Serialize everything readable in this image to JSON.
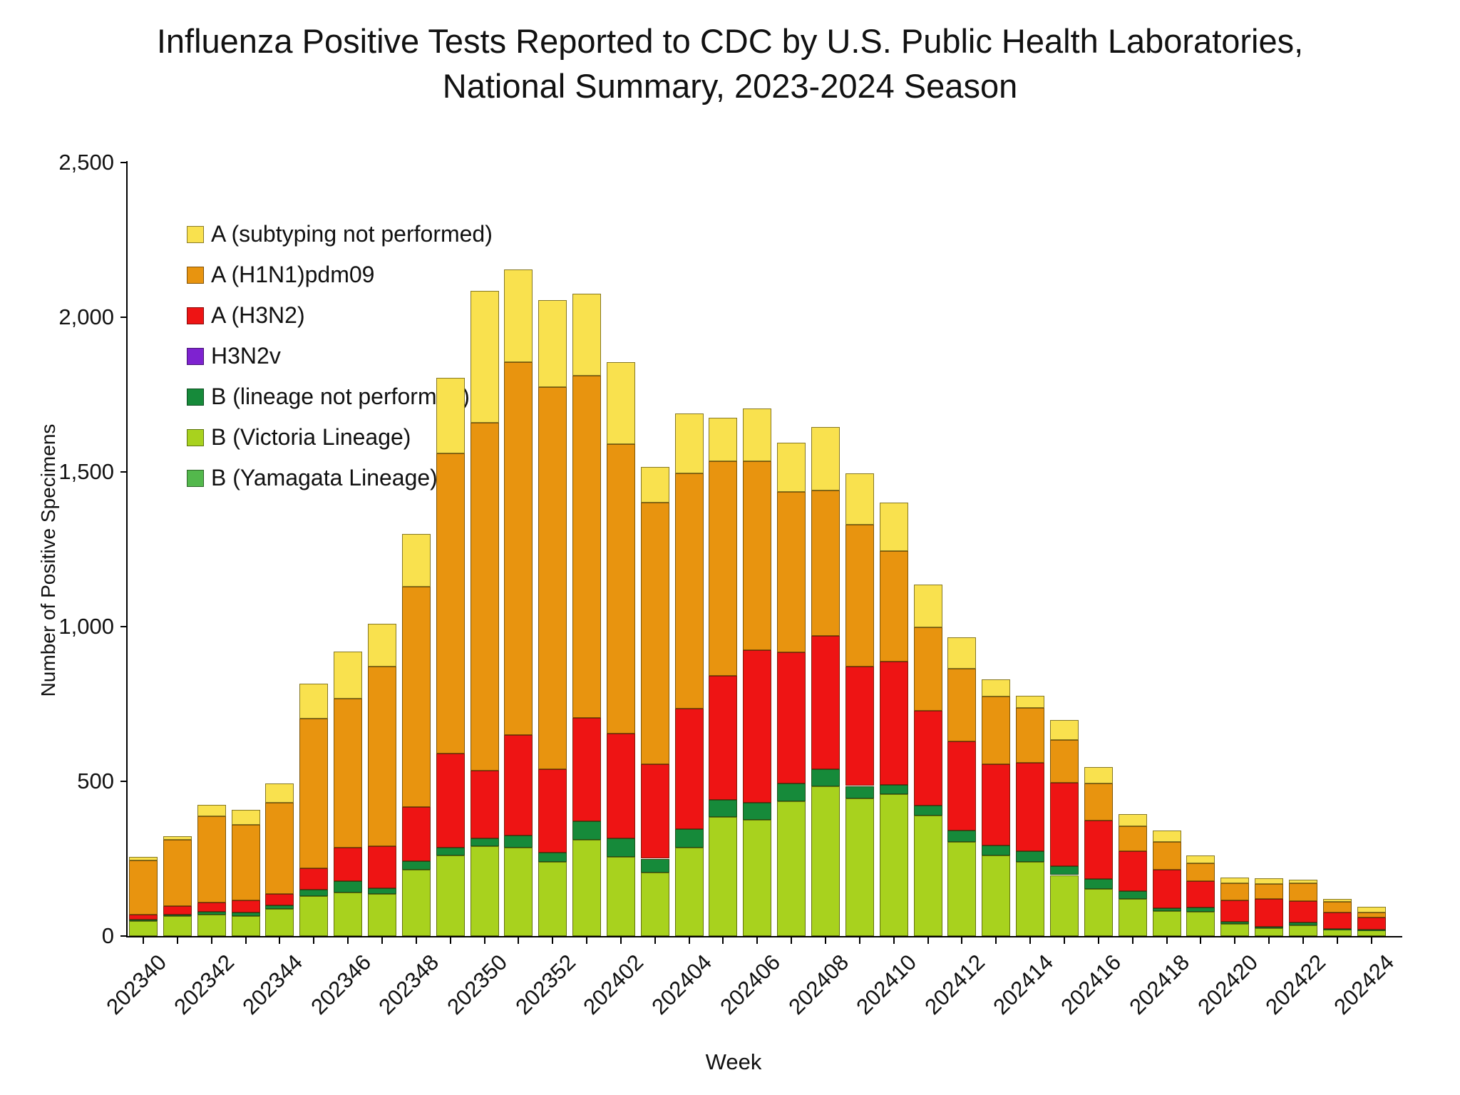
{
  "title": {
    "line1": "Influenza Positive Tests Reported to CDC by U.S. Public Health Laboratories,",
    "line2": "National Summary, 2023-2024 Season"
  },
  "y_axis": {
    "label": "Number of Positive Specimens",
    "ticks": [
      {
        "value": 0,
        "label": "0"
      },
      {
        "value": 500,
        "label": "500"
      },
      {
        "value": 1000,
        "label": "1,000"
      },
      {
        "value": 1500,
        "label": "1,500"
      },
      {
        "value": 2000,
        "label": "2,000"
      },
      {
        "value": 2500,
        "label": "2,500"
      }
    ]
  },
  "x_axis": {
    "label": "Week",
    "label_every": 2
  },
  "legend": [
    {
      "key": "a_nsp",
      "label": "A (subtyping not performed)",
      "color": "#F9E14E"
    },
    {
      "key": "h1n1",
      "label": "A (H1N1)pdm09",
      "color": "#E8940F"
    },
    {
      "key": "h3n2",
      "label": "A (H3N2)",
      "color": "#EE1414"
    },
    {
      "key": "h3n2v",
      "label": "H3N2v",
      "color": "#7E22D0"
    },
    {
      "key": "b_lnp",
      "label": "B (lineage not performed)",
      "color": "#168A3A"
    },
    {
      "key": "victoria",
      "label": "B (Victoria Lineage)",
      "color": "#A8D21E"
    },
    {
      "key": "yamagata",
      "label": "B (Yamagata Lineage)",
      "color": "#53B84C"
    }
  ],
  "chart_data": {
    "type": "bar",
    "subtype": "stacked-vertical",
    "title": "Influenza Positive Tests Reported to CDC by U.S. Public Health Laboratories, National Summary, 2023-2024 Season",
    "xlabel": "Week",
    "ylabel": "Number of Positive Specimens",
    "ylim": [
      0,
      2500
    ],
    "grid": false,
    "legend_position": "upper-left-inside",
    "categories": [
      "202340",
      "202341",
      "202342",
      "202343",
      "202344",
      "202345",
      "202346",
      "202347",
      "202348",
      "202349",
      "202350",
      "202351",
      "202352",
      "202401",
      "202402",
      "202403",
      "202404",
      "202405",
      "202406",
      "202407",
      "202408",
      "202409",
      "202410",
      "202411",
      "202412",
      "202413",
      "202414",
      "202415",
      "202416",
      "202417",
      "202418",
      "202419",
      "202420",
      "202421",
      "202422",
      "202423",
      "202424"
    ],
    "series": [
      {
        "name": "B (Yamagata Lineage)",
        "key": "yamagata",
        "color": "#53B84C",
        "values": [
          0,
          0,
          0,
          0,
          0,
          0,
          0,
          0,
          0,
          0,
          0,
          0,
          0,
          0,
          0,
          0,
          0,
          0,
          0,
          0,
          0,
          0,
          0,
          0,
          0,
          0,
          0,
          0,
          0,
          0,
          0,
          0,
          0,
          0,
          0,
          0,
          0
        ]
      },
      {
        "name": "B (Victoria Lineage)",
        "key": "victoria",
        "color": "#A8D21E",
        "values": [
          48,
          65,
          70,
          65,
          88,
          130,
          140,
          135,
          215,
          260,
          290,
          285,
          240,
          310,
          255,
          205,
          285,
          385,
          375,
          435,
          483,
          445,
          458,
          390,
          305,
          260,
          240,
          197,
          153,
          120,
          80,
          78,
          40,
          25,
          35,
          20,
          18
        ]
      },
      {
        "name": "B (lineage not performed)",
        "key": "b_lnp",
        "color": "#168A3A",
        "values": [
          6,
          5,
          9,
          12,
          11,
          20,
          38,
          20,
          26,
          25,
          25,
          40,
          30,
          60,
          60,
          45,
          60,
          55,
          55,
          58,
          57,
          40,
          30,
          32,
          35,
          33,
          34,
          28,
          31,
          25,
          10,
          15,
          5,
          5,
          8,
          4,
          3
        ]
      },
      {
        "name": "H3N2v",
        "key": "h3n2v",
        "color": "#7E22D0",
        "values": [
          0,
          0,
          0,
          0,
          0,
          0,
          0,
          0,
          0,
          0,
          0,
          0,
          0,
          0,
          0,
          0,
          0,
          0,
          0,
          0,
          0,
          0,
          0,
          0,
          0,
          0,
          0,
          0,
          0,
          0,
          0,
          0,
          0,
          0,
          0,
          0,
          0
        ]
      },
      {
        "name": "A (H3N2)",
        "key": "h3n2",
        "color": "#EE1414",
        "values": [
          15,
          26,
          29,
          38,
          37,
          70,
          108,
          135,
          176,
          305,
          220,
          325,
          270,
          335,
          340,
          305,
          390,
          400,
          495,
          425,
          430,
          385,
          398,
          305,
          290,
          262,
          285,
          270,
          190,
          130,
          125,
          85,
          70,
          90,
          70,
          52,
          40
        ]
      },
      {
        "name": "A (H1N1)pdm09",
        "key": "h1n1",
        "color": "#E8940F",
        "values": [
          175,
          215,
          278,
          244,
          296,
          483,
          482,
          580,
          713,
          970,
          1125,
          1205,
          1235,
          1105,
          935,
          845,
          760,
          695,
          610,
          517,
          470,
          460,
          358,
          270,
          235,
          220,
          178,
          138,
          118,
          80,
          90,
          58,
          55,
          48,
          58,
          34,
          15
        ]
      },
      {
        "name": "A (subtyping not performed)",
        "key": "a_nsp",
        "color": "#F9E14E",
        "values": [
          11,
          11,
          37,
          48,
          62,
          112,
          152,
          140,
          170,
          245,
          425,
          300,
          280,
          265,
          265,
          115,
          195,
          140,
          170,
          160,
          205,
          165,
          156,
          140,
          100,
          55,
          40,
          65,
          53,
          40,
          35,
          25,
          20,
          19,
          10,
          10,
          19
        ]
      }
    ]
  }
}
